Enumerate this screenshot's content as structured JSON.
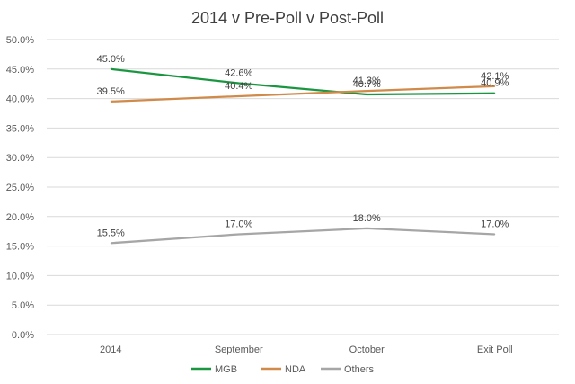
{
  "chart_data": {
    "type": "line",
    "title": "2014 v Pre-Poll v Post-Poll",
    "categories": [
      "2014",
      "September",
      "October",
      "Exit Poll"
    ],
    "series": [
      {
        "name": "MGB",
        "color": "#1a9641",
        "values": [
          45.0,
          42.6,
          40.7,
          40.9
        ],
        "labels": [
          "45.0%",
          "42.6%",
          "40.7%",
          "40.9%"
        ]
      },
      {
        "name": "NDA",
        "color": "#d08a4a",
        "values": [
          39.5,
          40.4,
          41.3,
          42.1
        ],
        "labels": [
          "39.5%",
          "40.4%",
          "41.3%",
          "42.1%"
        ]
      },
      {
        "name": "Others",
        "color": "#a6a6a6",
        "values": [
          15.5,
          17.0,
          18.0,
          17.0
        ],
        "labels": [
          "15.5%",
          "17.0%",
          "18.0%",
          "17.0%"
        ]
      }
    ],
    "ylim": [
      0,
      50
    ],
    "yticks": [
      "0.0%",
      "5.0%",
      "10.0%",
      "15.0%",
      "20.0%",
      "25.0%",
      "30.0%",
      "35.0%",
      "40.0%",
      "45.0%",
      "50.0%"
    ],
    "grid": true,
    "legend_position": "bottom"
  }
}
